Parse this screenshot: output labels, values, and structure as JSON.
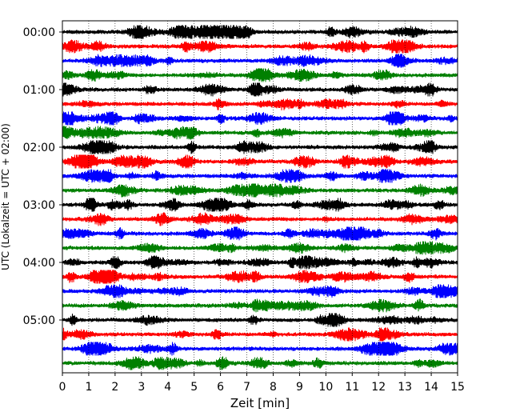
{
  "chart_data": {
    "type": "line",
    "title": "",
    "xlabel": "Zeit  [min]",
    "ylabel": "UTC (Lokalzeit = UTC + 02:00)",
    "xlim": [
      0,
      15
    ],
    "x_ticks": [
      "0",
      "1",
      "2",
      "3",
      "4",
      "5",
      "6",
      "7",
      "8",
      "9",
      "10",
      "11",
      "12",
      "13",
      "14",
      "15"
    ],
    "y_tick_labels": [
      "00:00",
      "01:00",
      "02:00",
      "03:00",
      "04:00",
      "05:00"
    ],
    "trace_interval_minutes": 15,
    "trace_count": 24,
    "trace_colors": [
      "#000000",
      "#ff0000",
      "#0000ff",
      "#008000"
    ],
    "grid": "vertical dotted at each minute"
  }
}
